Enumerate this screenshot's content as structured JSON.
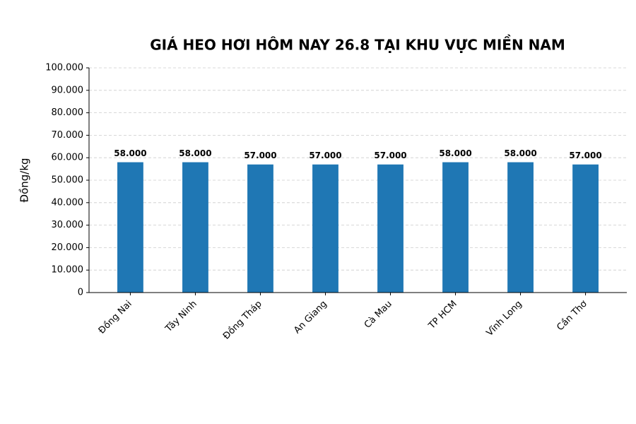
{
  "chart_data": {
    "type": "bar",
    "title": "GIÁ HEO HƠI HÔM NAY 26.8 TẠI KHU VỰC MIỀN NAM",
    "y_label": "Đồng/kg",
    "categories": [
      "Đồng Nai",
      "Tây Ninh",
      "Đồng Tháp",
      "An Giang",
      "Cà Mau",
      "TP HCM",
      "Vĩnh Long",
      "Cần Thơ"
    ],
    "values": [
      58000,
      58000,
      57000,
      57000,
      57000,
      58000,
      58000,
      57000
    ],
    "value_labels": [
      "58.000",
      "58.000",
      "57.000",
      "57.000",
      "57.000",
      "58.000",
      "58.000",
      "57.000"
    ],
    "color": "#1f77b4",
    "ylim": [
      0,
      100000
    ],
    "yticks": [
      0,
      {
        "value": 10000,
        "label": "10.000"
      },
      {
        "value": 20000,
        "label": "20.000"
      },
      {
        "value": 30000,
        "label": "30.000"
      },
      {
        "value": 40000,
        "label": "40.000"
      },
      {
        "value": 50000,
        "label": "50.000"
      },
      {
        "value": 60000,
        "label": "60.000"
      },
      {
        "value": 70000,
        "label": "70.000"
      },
      {
        "value": 80000,
        "label": "80.000"
      },
      {
        "value": 90000,
        "label": "90.000"
      },
      {
        "value": 100000,
        "label": "100.000"
      }
    ],
    "grid": true
  }
}
